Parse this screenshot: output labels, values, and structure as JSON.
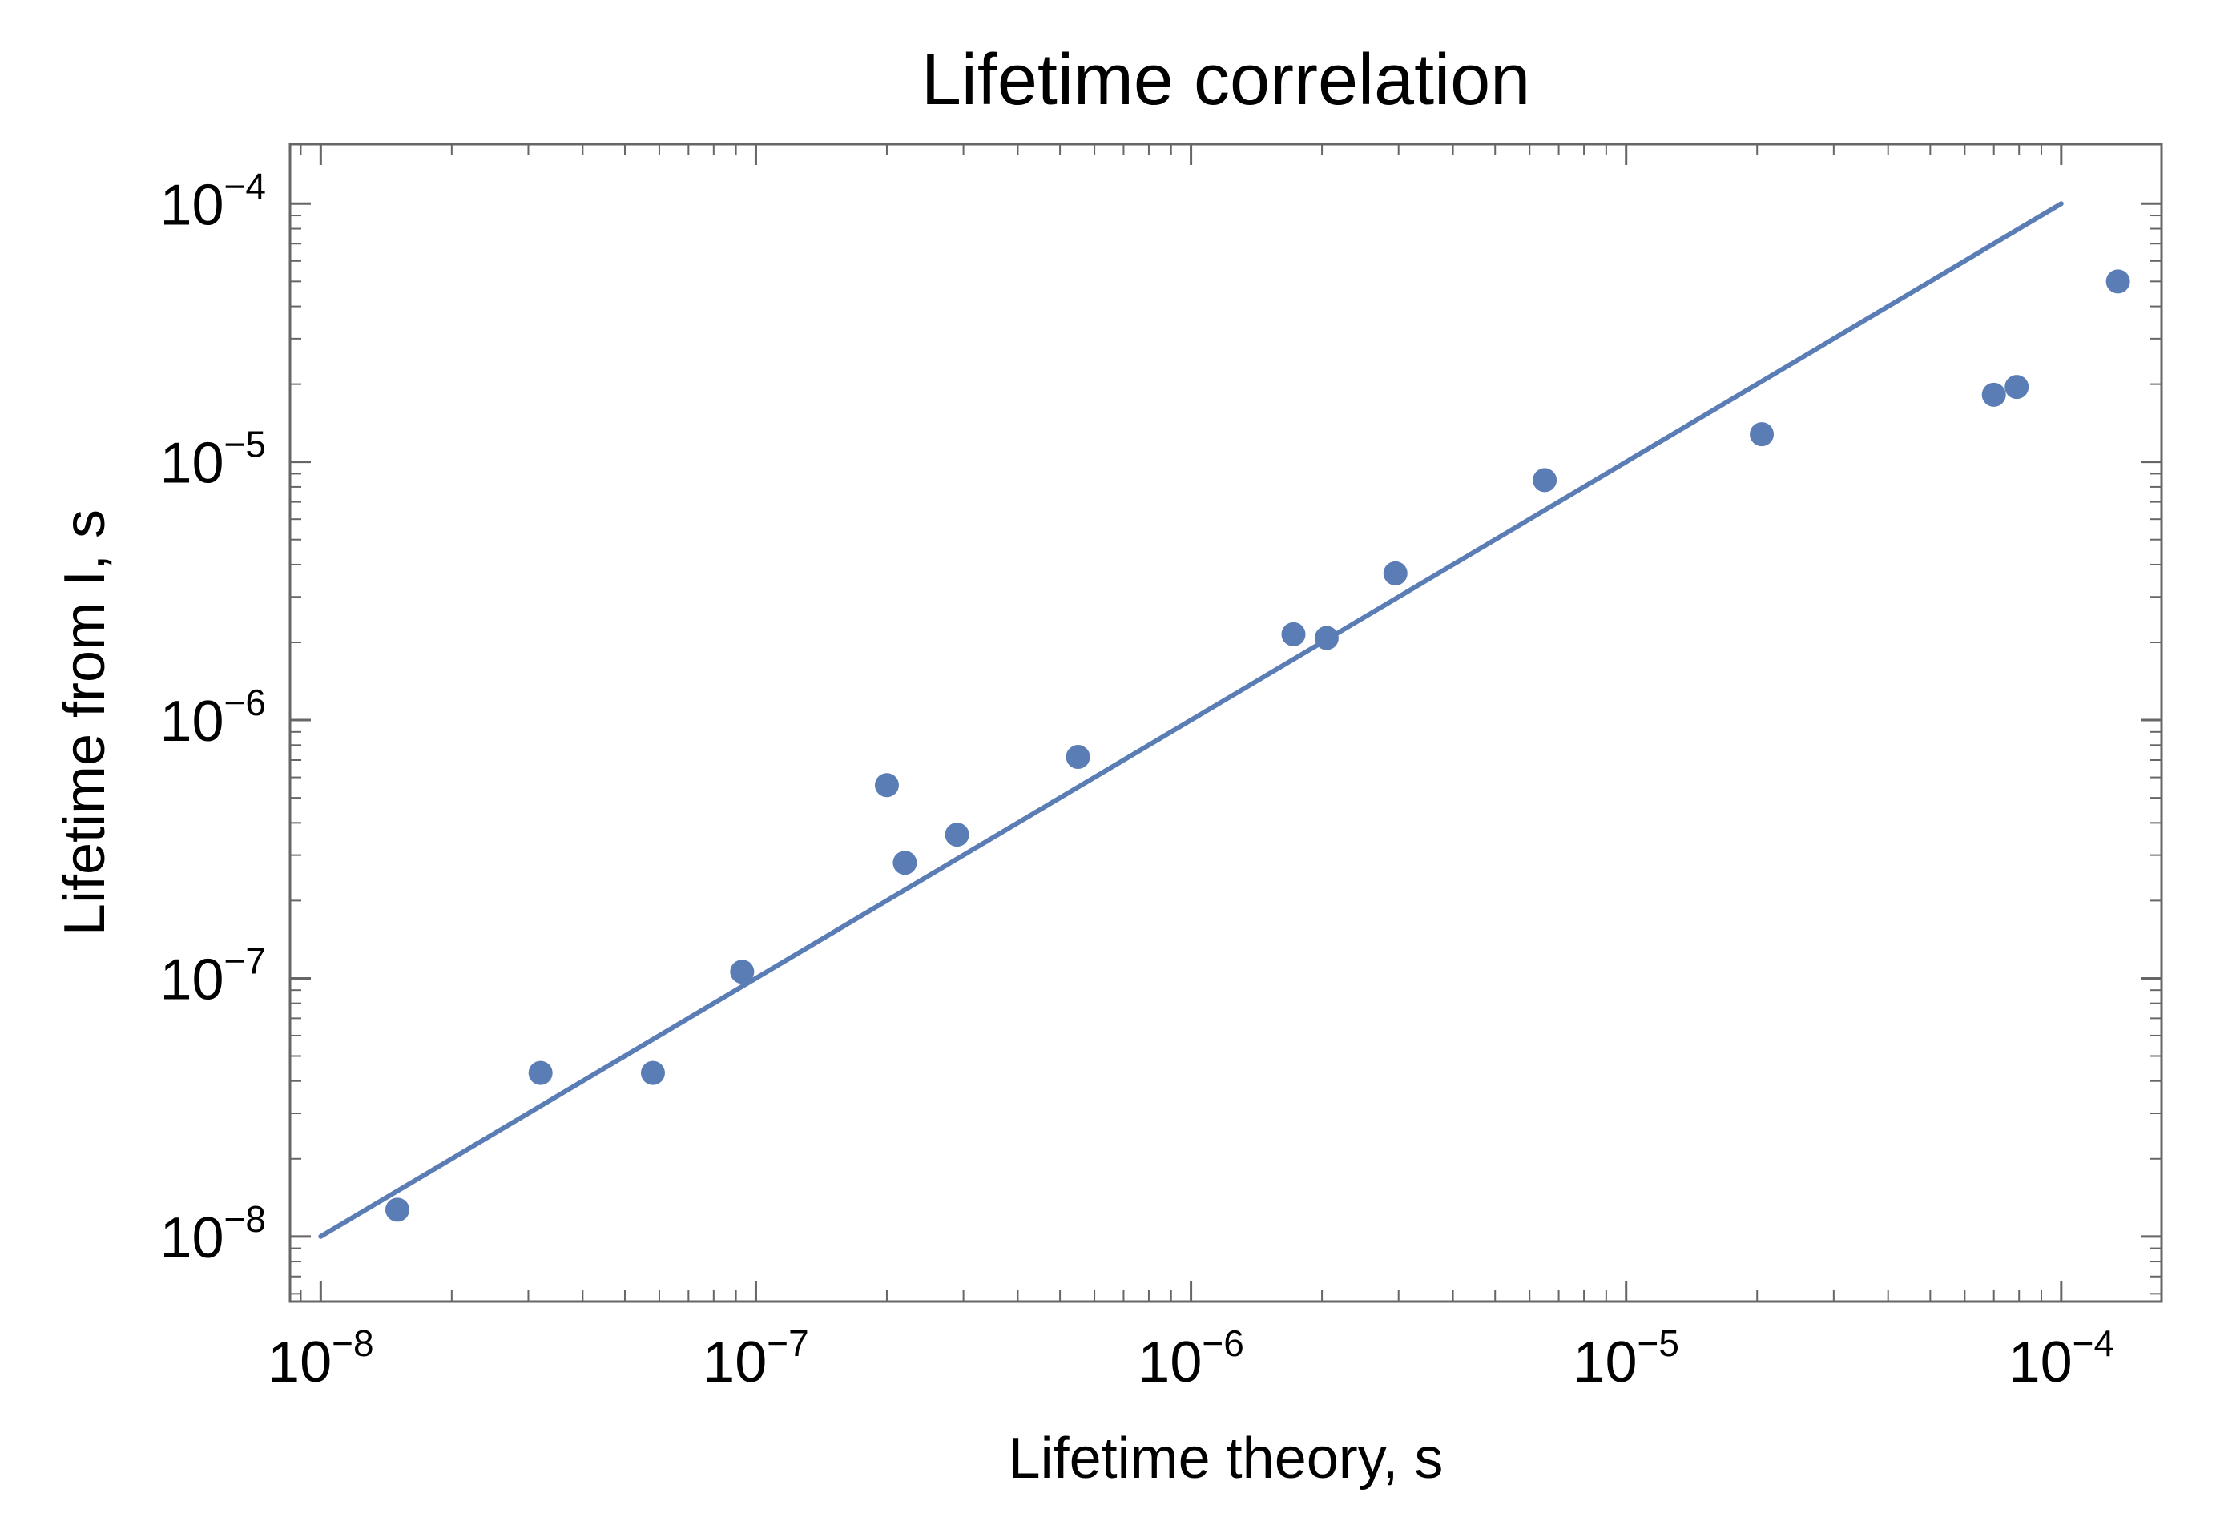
{
  "chart_data": {
    "type": "scatter",
    "title": "Lifetime correlation",
    "xlabel": "Lifetime theory, s",
    "ylabel": "Lifetime from I, s",
    "x_scale": "log",
    "y_scale": "log",
    "xlim": [
      8.5e-09,
      0.00017
    ],
    "ylim": [
      5.6e-09,
      0.00017
    ],
    "x_ticks": [
      {
        "value": 1e-08,
        "base": "10",
        "exp": "−8"
      },
      {
        "value": 1e-07,
        "base": "10",
        "exp": "−7"
      },
      {
        "value": 1e-06,
        "base": "10",
        "exp": "−6"
      },
      {
        "value": 1e-05,
        "base": "10",
        "exp": "−5"
      },
      {
        "value": 0.0001,
        "base": "10",
        "exp": "−4"
      }
    ],
    "y_ticks": [
      {
        "value": 1e-08,
        "base": "10",
        "exp": "−8"
      },
      {
        "value": 1e-07,
        "base": "10",
        "exp": "−7"
      },
      {
        "value": 1e-06,
        "base": "10",
        "exp": "−6"
      },
      {
        "value": 1e-05,
        "base": "10",
        "exp": "−5"
      },
      {
        "value": 0.0001,
        "base": "10",
        "exp": "−4"
      }
    ],
    "grid": false,
    "frame": true,
    "series": [
      {
        "type": "scatter",
        "color": "#5b7db5",
        "points": [
          {
            "x": 1.5e-08,
            "y": 1.27e-08
          },
          {
            "x": 3.2e-08,
            "y": 4.3e-08
          },
          {
            "x": 5.8e-08,
            "y": 4.3e-08
          },
          {
            "x": 9.3e-08,
            "y": 1.06e-07
          },
          {
            "x": 2e-07,
            "y": 5.6e-07
          },
          {
            "x": 2.2e-07,
            "y": 2.8e-07
          },
          {
            "x": 2.9e-07,
            "y": 3.6e-07
          },
          {
            "x": 5.5e-07,
            "y": 7.2e-07
          },
          {
            "x": 1.72e-06,
            "y": 2.15e-06
          },
          {
            "x": 2.05e-06,
            "y": 2.08e-06
          },
          {
            "x": 2.95e-06,
            "y": 3.7e-06
          },
          {
            "x": 6.5e-06,
            "y": 8.5e-06
          },
          {
            "x": 2.05e-05,
            "y": 1.28e-05
          },
          {
            "x": 7e-05,
            "y": 1.82e-05
          },
          {
            "x": 7.9e-05,
            "y": 1.95e-05
          },
          {
            "x": 0.000135,
            "y": 5e-05
          }
        ]
      },
      {
        "type": "line",
        "color": "#5b7db5",
        "points": [
          {
            "x": 1e-08,
            "y": 1e-08
          },
          {
            "x": 0.0001,
            "y": 0.0001
          }
        ]
      }
    ]
  }
}
